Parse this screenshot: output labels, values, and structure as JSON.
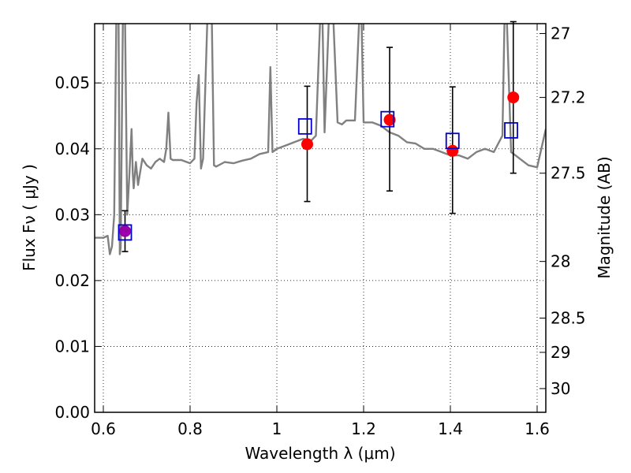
{
  "chart_data": {
    "type": "scatter",
    "xlabel": "Wavelength  λ (μm)",
    "ylabel": "Flux  Fν  ( μJy )",
    "y2label": "Magnitude (AB)",
    "xlim": [
      0.58,
      1.62
    ],
    "ylim": [
      0.0,
      0.059
    ],
    "grid": true,
    "x_ticks": [
      0.6,
      0.8,
      1.0,
      1.2,
      1.4,
      1.6
    ],
    "x_tick_labels": [
      "0.6",
      "0.8",
      "1",
      "1.2",
      "1.4",
      "1.6"
    ],
    "y_ticks": [
      0.0,
      0.01,
      0.02,
      0.03,
      0.04,
      0.05
    ],
    "y_tick_labels": [
      "0.00",
      "0.01",
      "0.02",
      "0.03",
      "0.04",
      "0.05"
    ],
    "y2_ticks": [
      {
        "label": "27",
        "flux": 0.0575
      },
      {
        "label": "27.2",
        "flux": 0.0478
      },
      {
        "label": "27.5",
        "flux": 0.0363
      },
      {
        "label": "28",
        "flux": 0.0229
      },
      {
        "label": "28.5",
        "flux": 0.0143
      },
      {
        "label": "29",
        "flux": 0.0091
      },
      {
        "label": "30",
        "flux": 0.0036
      }
    ],
    "spectrum": {
      "color": "#808080",
      "x": [
        0.58,
        0.6,
        0.61,
        0.615,
        0.62,
        0.625,
        0.63,
        0.635,
        0.638,
        0.64,
        0.645,
        0.65,
        0.655,
        0.66,
        0.665,
        0.668,
        0.67,
        0.675,
        0.68,
        0.69,
        0.7,
        0.71,
        0.72,
        0.73,
        0.74,
        0.745,
        0.75,
        0.755,
        0.76,
        0.78,
        0.8,
        0.81,
        0.815,
        0.82,
        0.825,
        0.83,
        0.84,
        0.85,
        0.855,
        0.86,
        0.88,
        0.9,
        0.92,
        0.94,
        0.96,
        0.98,
        0.985,
        0.99,
        1.0,
        1.02,
        1.04,
        1.06,
        1.08,
        1.09,
        1.1,
        1.105,
        1.11,
        1.12,
        1.13,
        1.14,
        1.15,
        1.16,
        1.18,
        1.19,
        1.195,
        1.2,
        1.22,
        1.24,
        1.26,
        1.28,
        1.3,
        1.32,
        1.34,
        1.36,
        1.38,
        1.4,
        1.42,
        1.44,
        1.46,
        1.48,
        1.5,
        1.52,
        1.525,
        1.53,
        1.54,
        1.55,
        1.56,
        1.58,
        1.6,
        1.62
      ],
      "y": [
        0.0265,
        0.0265,
        0.0268,
        0.024,
        0.0252,
        0.03,
        0.06,
        0.06,
        0.024,
        0.025,
        0.06,
        0.06,
        0.03,
        0.036,
        0.043,
        0.036,
        0.034,
        0.038,
        0.0345,
        0.0385,
        0.0375,
        0.037,
        0.038,
        0.0385,
        0.038,
        0.04,
        0.0455,
        0.0385,
        0.0383,
        0.0383,
        0.0378,
        0.0385,
        0.047,
        0.0512,
        0.037,
        0.0385,
        0.06,
        0.06,
        0.0375,
        0.0373,
        0.038,
        0.0378,
        0.0382,
        0.0385,
        0.0392,
        0.0395,
        0.0524,
        0.0395,
        0.04,
        0.0405,
        0.041,
        0.0415,
        0.0413,
        0.042,
        0.06,
        0.06,
        0.0425,
        0.06,
        0.06,
        0.044,
        0.0437,
        0.0443,
        0.0443,
        0.06,
        0.06,
        0.044,
        0.044,
        0.0435,
        0.0425,
        0.042,
        0.041,
        0.0408,
        0.04,
        0.04,
        0.0395,
        0.039,
        0.039,
        0.0385,
        0.0395,
        0.04,
        0.0395,
        0.042,
        0.06,
        0.06,
        0.0395,
        0.039,
        0.0385,
        0.0375,
        0.0372,
        0.043
      ]
    },
    "observed": {
      "color": "#ff0000",
      "points": [
        {
          "x": 0.65,
          "y": 0.0275,
          "err_low": 0.0031,
          "err_high": 0.0031
        },
        {
          "x": 1.07,
          "y": 0.0407,
          "err_low": 0.0087,
          "err_high": 0.0088
        },
        {
          "x": 1.26,
          "y": 0.0444,
          "err_low": 0.0108,
          "err_high": 0.011
        },
        {
          "x": 1.405,
          "y": 0.0397,
          "err_low": 0.0095,
          "err_high": 0.0097
        },
        {
          "x": 1.545,
          "y": 0.0478,
          "err_low": 0.0115,
          "err_high": 0.0115
        }
      ]
    },
    "model_bands": {
      "color": "#0000cc",
      "points": [
        {
          "x": 0.65,
          "y": 0.0273
        },
        {
          "x": 1.065,
          "y": 0.0434
        },
        {
          "x": 1.255,
          "y": 0.0445
        },
        {
          "x": 1.405,
          "y": 0.0412
        },
        {
          "x": 1.54,
          "y": 0.0428
        }
      ]
    },
    "overlap_color": "#9900aa"
  }
}
